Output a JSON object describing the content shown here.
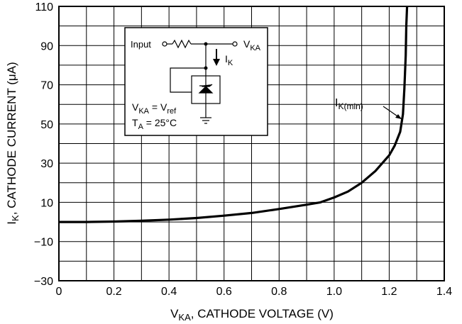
{
  "chart_data": {
    "type": "line",
    "xlabel": {
      "main": "V",
      "sub": "KA",
      "rest": ", CATHODE VOLTAGE (V)"
    },
    "ylabel": {
      "main": "I",
      "sub": "K",
      "rest": ", CATHODE CURRENT (μA)"
    },
    "xlim": [
      0,
      1.4
    ],
    "ylim": [
      -30,
      110
    ],
    "xticks": [
      "0",
      "0.2",
      "0.4",
      "0.6",
      "0.8",
      "1.0",
      "1.2",
      "1.4"
    ],
    "yticks": [
      "−30",
      "−10",
      "10",
      "30",
      "50",
      "70",
      "90",
      "110"
    ],
    "grid": true,
    "series": [
      {
        "x": [
          0,
          0.1,
          0.2,
          0.3,
          0.4,
          0.5,
          0.6,
          0.7,
          0.8,
          0.9,
          0.95,
          1.0,
          1.05,
          1.1,
          1.15,
          1.2,
          1.22,
          1.24,
          1.25,
          1.255,
          1.26,
          1.262,
          1.265
        ],
        "y": [
          0,
          0,
          0.2,
          0.6,
          1.2,
          2.0,
          3.2,
          4.6,
          6.6,
          8.8,
          10,
          12.5,
          15.5,
          20,
          26,
          34,
          39,
          46,
          55,
          68,
          85,
          100,
          110
        ]
      }
    ],
    "annotation": {
      "main": "I",
      "sub": "K(min)"
    }
  },
  "inset": {
    "input_label": "Input",
    "vka_label": {
      "main": "V",
      "sub": "KA"
    },
    "ik_label": {
      "main": "I",
      "sub": "K"
    },
    "eq1": {
      "a": "V",
      "a_sub": "KA",
      "mid": " = V",
      "b_sub": "ref"
    },
    "eq2": {
      "a": "T",
      "a_sub": "A",
      "rest": " = 25°C"
    }
  }
}
